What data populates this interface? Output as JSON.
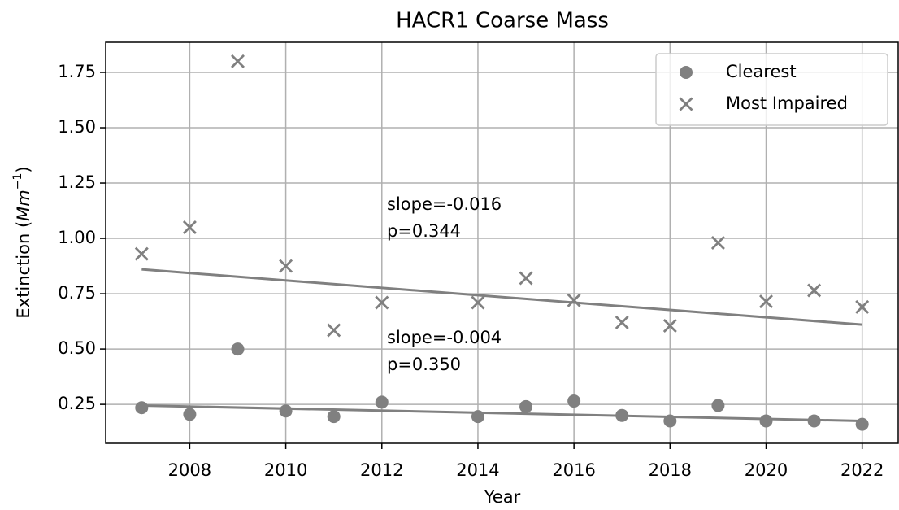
{
  "chart_data": {
    "type": "scatter",
    "title": "HACR1 Coarse Mass",
    "xlabel": "Year",
    "ylabel": [
      "Extinction (",
      "Mm",
      "−1",
      ")"
    ],
    "x": [
      2007,
      2008,
      2009,
      2010,
      2011,
      2012,
      2014,
      2015,
      2016,
      2017,
      2018,
      2019,
      2020,
      2021,
      2022
    ],
    "series": [
      {
        "name": "Clearest",
        "marker": "circle",
        "color": "#808080",
        "values": [
          0.235,
          0.205,
          0.5,
          0.22,
          0.195,
          0.26,
          0.195,
          0.24,
          0.265,
          0.2,
          0.175,
          0.245,
          0.175,
          0.175,
          0.16
        ],
        "trend": {
          "x": [
            2007,
            2022
          ],
          "values": [
            0.245,
            0.175
          ]
        }
      },
      {
        "name": "Most Impaired",
        "marker": "x",
        "color": "#808080",
        "values": [
          0.93,
          1.05,
          1.8,
          0.875,
          0.585,
          0.71,
          0.71,
          0.82,
          0.72,
          0.62,
          0.605,
          0.98,
          0.715,
          0.765,
          0.69
        ],
        "trend": {
          "x": [
            2007,
            2022
          ],
          "values": [
            0.86,
            0.61
          ]
        }
      }
    ],
    "annotations": [
      {
        "text": [
          "slope=-0.016",
          "p=0.344"
        ]
      },
      {
        "text": [
          "slope=-0.004",
          "p=0.350"
        ]
      }
    ],
    "xlim": [
      2006.25,
      2022.75
    ],
    "xticks": [
      2008,
      2010,
      2012,
      2014,
      2016,
      2018,
      2020,
      2022
    ],
    "ylim": [
      0.074,
      1.886
    ],
    "yticks": [
      0.25,
      {
        "value": 0.5,
        "label": "0.50"
      },
      0.75,
      {
        "value": 1,
        "label": "1.00"
      },
      1.25,
      {
        "value": 1.5,
        "label": "1.50"
      },
      1.75
    ],
    "grid": true,
    "legend": "upper right"
  }
}
